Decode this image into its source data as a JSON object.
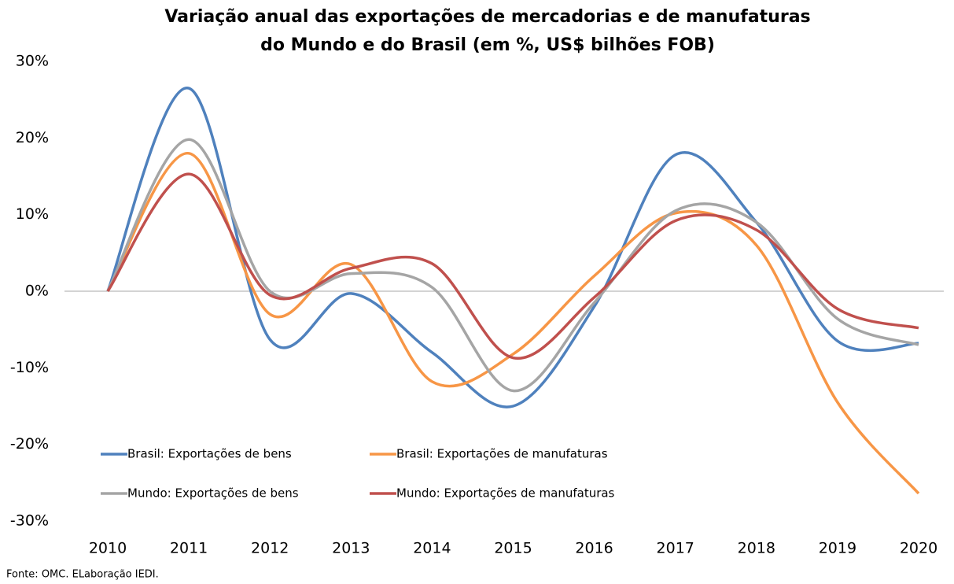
{
  "chart_data": {
    "type": "line",
    "title": [
      "Variação anual das exportações de mercadorias e de manufaturas",
      "do Mundo e do Brasil (em %, US$ bilhões FOB)"
    ],
    "categories": [
      "2010",
      "2011",
      "2012",
      "2013",
      "2014",
      "2015",
      "2016",
      "2017",
      "2018",
      "2019",
      "2020"
    ],
    "series": [
      {
        "name": "Brasil: Exportações de bens",
        "color": "#4f81bd",
        "values": [
          0,
          26.5,
          -6.3,
          -0.3,
          -8,
          -15,
          -2,
          17.8,
          9,
          -6.5,
          -6.8
        ]
      },
      {
        "name": "Brasil: Exportações de manufaturas",
        "color": "#f79646",
        "values": [
          0,
          18,
          -3,
          3.5,
          -11.8,
          -8.2,
          2,
          10.2,
          6,
          -14.5,
          -26.4
        ]
      },
      {
        "name": "Mundo: Exportações de bens",
        "color": "#a5a5a5",
        "values": [
          0,
          19.8,
          0,
          2.3,
          0.5,
          -13,
          -1.5,
          10.5,
          9,
          -3.6,
          -7
        ]
      },
      {
        "name": "Mundo: Exportações de manufaturas",
        "color": "#c0504d",
        "values": [
          0,
          15.3,
          -0.5,
          3,
          3.6,
          -8.7,
          -0.8,
          9.2,
          8,
          -2.3,
          -4.8
        ]
      }
    ],
    "ylim": [
      -30,
      30
    ],
    "yticks": [
      {
        "value": -30,
        "label": "-30%"
      },
      {
        "value": -20,
        "label": "-20%"
      },
      {
        "value": -10,
        "label": "-10%"
      },
      {
        "value": 0,
        "label": "0%"
      },
      {
        "value": 10,
        "label": "10%"
      },
      {
        "value": 20,
        "label": "20%"
      },
      {
        "value": 30,
        "label": "30%"
      }
    ],
    "smooth": true,
    "source": "Fonte: OMC. ELaboração IEDI."
  }
}
